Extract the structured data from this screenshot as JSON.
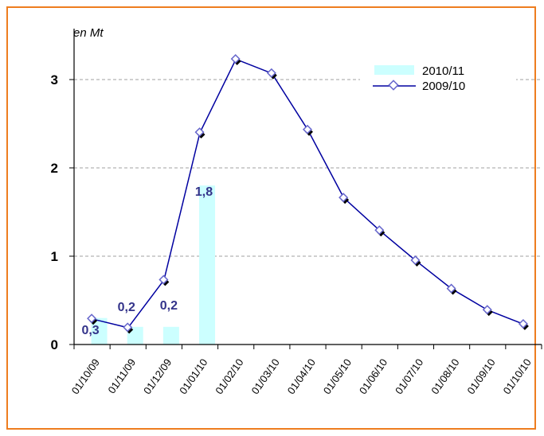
{
  "chart_data": {
    "type": "bar+line",
    "unit_label": "en Mt",
    "categories": [
      "01/10/09",
      "01/11/09",
      "01/12/09",
      "01/01/10",
      "01/02/10",
      "01/03/10",
      "01/04/10",
      "01/05/10",
      "01/06/10",
      "01/07/10",
      "01/08/10",
      "01/09/10",
      "01/10/10"
    ],
    "series": [
      {
        "name": "2010/11",
        "type": "bar",
        "values": [
          0.3,
          0.2,
          0.2,
          1.8,
          null,
          null,
          null,
          null,
          null,
          null,
          null,
          null,
          null
        ],
        "data_labels": [
          "0,3",
          "0,2",
          "0,2",
          "1,8"
        ],
        "color": "#ccffff"
      },
      {
        "name": "2009/10",
        "type": "line",
        "values": [
          0.29,
          0.19,
          0.73,
          2.4,
          3.23,
          3.07,
          2.43,
          1.66,
          1.29,
          0.95,
          0.63,
          0.39,
          0.23
        ],
        "color": "#0000a0",
        "marker_color": "#ffffff",
        "marker_edge_color": "#6666cc"
      }
    ],
    "yticks": [
      0,
      1,
      2,
      3
    ],
    "ytick_labels": [
      "0",
      "1",
      "2",
      "3"
    ],
    "ylim": [
      0,
      3.4
    ],
    "grid": "horizontal-dashed",
    "legend_position": "top-right"
  }
}
